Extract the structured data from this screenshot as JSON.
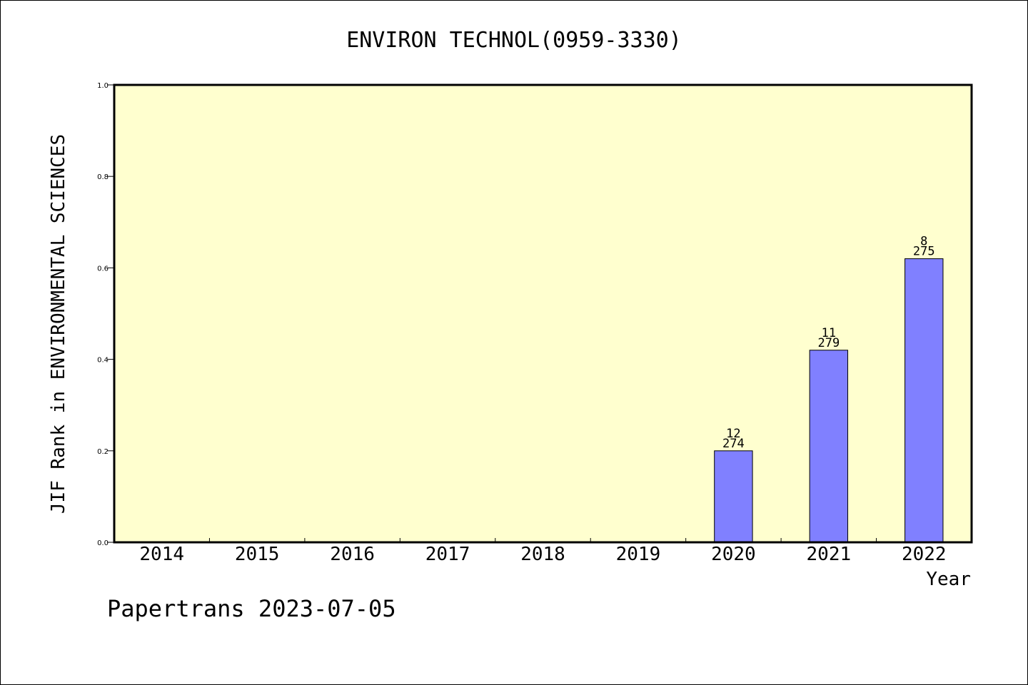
{
  "chart_data": {
    "type": "bar",
    "title": "ENVIRON TECHNOL(0959-3330)",
    "xlabel": "Year",
    "ylabel": "JIF Rank in ENVIRONMENTAL SCIENCES",
    "categories": [
      "2014",
      "2015",
      "2016",
      "2017",
      "2018",
      "2019",
      "2020",
      "2021",
      "2022"
    ],
    "values": [
      null,
      null,
      null,
      null,
      null,
      null,
      0.2,
      0.42,
      0.62
    ],
    "bar_labels": [
      null,
      null,
      null,
      null,
      null,
      null,
      {
        "rank": "12",
        "total": "274"
      },
      {
        "rank": "11",
        "total": "279"
      },
      {
        "rank": "8",
        "total": "275"
      }
    ],
    "ylim": [
      0,
      1.0
    ],
    "yticks": [
      "0.0",
      "0.2",
      "0.4",
      "0.6",
      "0.8",
      "1.0"
    ],
    "grid": false,
    "colors": {
      "plot_background": "#ffffcf",
      "bar_fill": "#8080ff",
      "axis": "#000000"
    }
  },
  "footer": {
    "credit": "Papertrans 2023-07-05"
  }
}
